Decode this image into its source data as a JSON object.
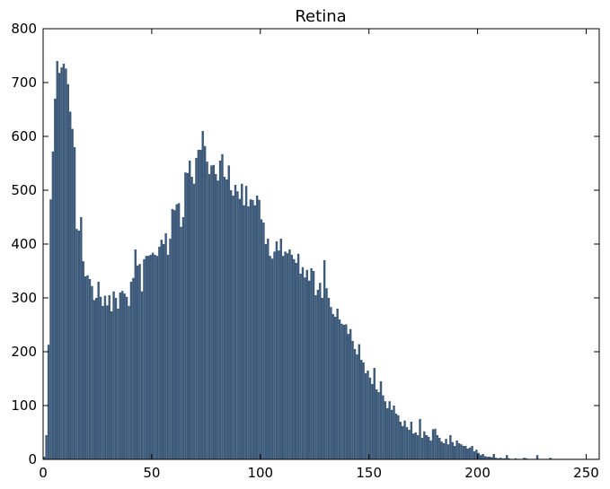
{
  "chart_data": {
    "type": "bar",
    "title": "Retina",
    "xlabel": "",
    "ylabel": "",
    "xlim": [
      0,
      256
    ],
    "ylim": [
      0,
      800
    ],
    "xticks": [
      0,
      50,
      100,
      150,
      200,
      250
    ],
    "yticks": [
      0,
      100,
      200,
      300,
      400,
      500,
      600,
      700,
      800
    ],
    "grid": false,
    "bar_color": "#3d5a7a",
    "bin_width": 1,
    "x_start": 0,
    "values": [
      5,
      45,
      213,
      483,
      572,
      670,
      740,
      718,
      728,
      735,
      726,
      697,
      646,
      614,
      580,
      428,
      425,
      450,
      368,
      340,
      342,
      335,
      322,
      296,
      300,
      330,
      302,
      285,
      304,
      286,
      305,
      275,
      312,
      300,
      280,
      310,
      313,
      308,
      302,
      285,
      330,
      337,
      390,
      360,
      363,
      312,
      372,
      378,
      378,
      380,
      384,
      380,
      378,
      395,
      408,
      400,
      420,
      380,
      410,
      465,
      463,
      474,
      476,
      432,
      450,
      533,
      532,
      555,
      525,
      512,
      560,
      575,
      575,
      610,
      582,
      553,
      530,
      546,
      547,
      530,
      518,
      555,
      567,
      525,
      520,
      546,
      500,
      490,
      510,
      498,
      484,
      512,
      472,
      508,
      470,
      483,
      482,
      472,
      490,
      482,
      446,
      440,
      400,
      410,
      378,
      373,
      386,
      405,
      388,
      410,
      378,
      386,
      383,
      390,
      380,
      372,
      365,
      382,
      345,
      357,
      338,
      352,
      332,
      355,
      350,
      305,
      315,
      328,
      300,
      370,
      318,
      300,
      283,
      270,
      265,
      280,
      260,
      252,
      250,
      251,
      233,
      242,
      220,
      205,
      195,
      214,
      185,
      180,
      160,
      165,
      152,
      140,
      170,
      130,
      125,
      145,
      119,
      108,
      95,
      108,
      92,
      100,
      85,
      82,
      70,
      62,
      72,
      60,
      55,
      70,
      48,
      50,
      45,
      75,
      40,
      52,
      45,
      42,
      35,
      56,
      57,
      45,
      40,
      33,
      30,
      38,
      28,
      45,
      32,
      25,
      35,
      30,
      28,
      25,
      25,
      20,
      22,
      25,
      15,
      18,
      12,
      8,
      10,
      6,
      5,
      5,
      4,
      10,
      3,
      2,
      3,
      2,
      2,
      8,
      2,
      1,
      1,
      2,
      1,
      1,
      1,
      3,
      2,
      1,
      1,
      1,
      1,
      8,
      1,
      1,
      1,
      1,
      1,
      3,
      1,
      1,
      1,
      1,
      1,
      1,
      1,
      1,
      1,
      1,
      1,
      1,
      1,
      1,
      1,
      1,
      1,
      1,
      1,
      1,
      1,
      1
    ]
  }
}
